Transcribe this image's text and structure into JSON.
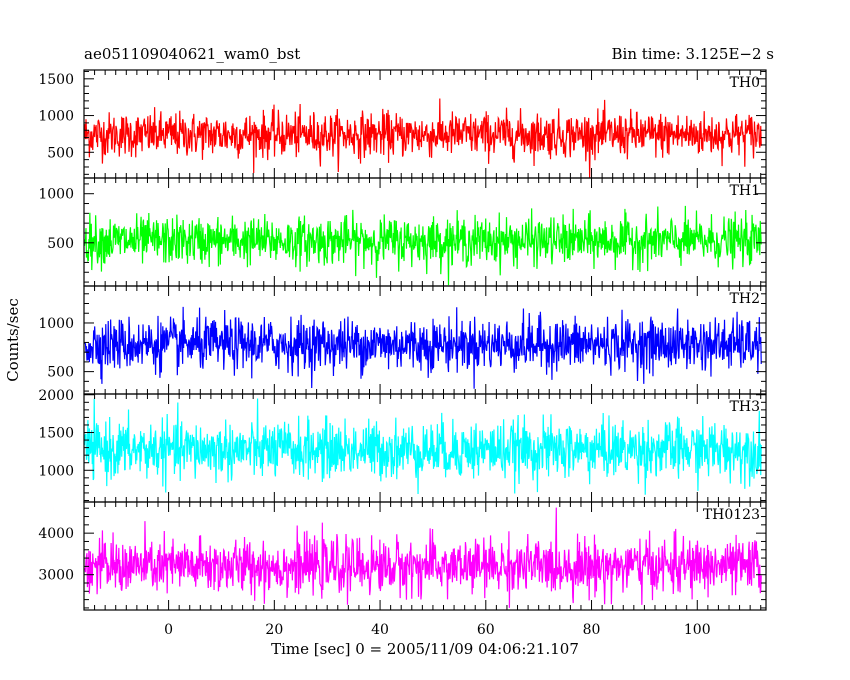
{
  "chart_data": {
    "type": "line",
    "title_left": "ae051109040621_wam0_bst",
    "title_right": "Bin time: 3.125E−2 s",
    "xlabel": "Time [sec] 0 = 2005/11/09 04:06:21.107",
    "ylabel": "Counts/sec",
    "xlim": [
      -16,
      113
    ],
    "x_ticks": [
      0,
      20,
      40,
      60,
      80,
      100
    ],
    "x_tick_labels": [
      "0",
      "20",
      "40",
      "60",
      "80",
      "100"
    ],
    "data_range": [
      -15.9,
      112.1
    ],
    "bin_time": 0.03125,
    "panels": [
      {
        "name": "TH0",
        "color": "#ff0000",
        "ylim": [
          150,
          1620
        ],
        "mean": 740,
        "noise_sd": 150,
        "y_ticks": [
          500,
          1000,
          1500
        ],
        "y_tick_labels": [
          "500",
          "1000",
          "1500"
        ]
      },
      {
        "name": "TH1",
        "color": "#00ff00",
        "ylim": [
          60,
          1160
        ],
        "mean": 520,
        "noise_sd": 120,
        "y_ticks": [
          500,
          1000
        ],
        "y_tick_labels": [
          "500",
          "1000"
        ]
      },
      {
        "name": "TH2",
        "color": "#0000ff",
        "ylim": [
          270,
          1380
        ],
        "mean": 780,
        "noise_sd": 135,
        "y_ticks": [
          500,
          1000
        ],
        "y_tick_labels": [
          "500",
          "1000"
        ]
      },
      {
        "name": "TH3",
        "color": "#00ffff",
        "ylim": [
          580,
          2010
        ],
        "mean": 1270,
        "noise_sd": 190,
        "y_ticks": [
          1000,
          1500,
          2000
        ],
        "y_tick_labels": [
          "1000",
          "1500",
          "2000"
        ]
      },
      {
        "name": "TH0123",
        "color": "#ff00ff",
        "ylim": [
          2150,
          4750
        ],
        "mean": 3200,
        "noise_sd": 330,
        "y_ticks": [
          3000,
          4000
        ],
        "y_tick_labels": [
          "3000",
          "4000"
        ]
      }
    ]
  }
}
